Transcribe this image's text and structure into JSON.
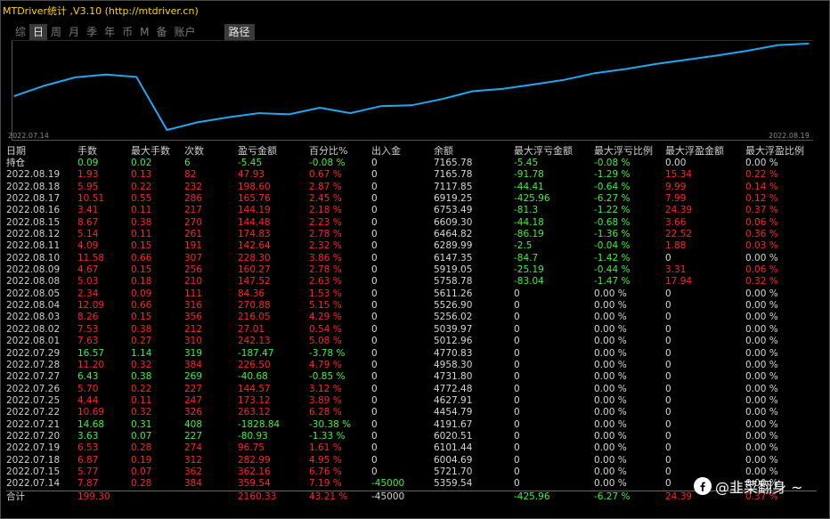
{
  "window": {
    "title": "MTDriver统计 ,V3.10 (http://mtdriver.cn)"
  },
  "tabs": [
    "综",
    "日",
    "周",
    "月",
    "季",
    "年",
    "币",
    "M",
    "备",
    "账户",
    "路径"
  ],
  "active_tab": "日",
  "chart_data": {
    "type": "line",
    "x_start_label": "2022.07.14",
    "x_end_label": "2022.08.19",
    "x": [
      "2022.07.14",
      "2022.07.15",
      "2022.07.18",
      "2022.07.19",
      "2022.07.20",
      "2022.07.21",
      "2022.07.22",
      "2022.07.25",
      "2022.07.26",
      "2022.07.27",
      "2022.07.28",
      "2022.07.29",
      "2022.08.01",
      "2022.08.02",
      "2022.08.03",
      "2022.08.04",
      "2022.08.05",
      "2022.08.08",
      "2022.08.09",
      "2022.08.10",
      "2022.08.11",
      "2022.08.12",
      "2022.08.15",
      "2022.08.16",
      "2022.08.17",
      "2022.08.18",
      "2022.08.19"
    ],
    "series": [
      {
        "values": [
          5359.54,
          5721.7,
          6004.69,
          6101.44,
          6020.51,
          4191.67,
          4454.79,
          4627.91,
          4772.48,
          4731.8,
          4958.3,
          4770.83,
          5012.96,
          5039.97,
          5256.02,
          5526.9,
          5611.26,
          5758.78,
          5919.05,
          6147.35,
          6289.99,
          6464.82,
          6609.3,
          6753.49,
          6919.25,
          7117.85,
          7165.78
        ]
      }
    ],
    "color": "#1ea8f0"
  },
  "table": {
    "headers": [
      "日期",
      "手数",
      "最大手数",
      "次数",
      "盈亏金额",
      "百分比%",
      "出入金",
      "余额",
      "最大浮亏金额",
      "最大浮亏比例",
      "最大浮盈金额",
      "最大浮盈比例"
    ],
    "hold": [
      "持仓",
      "0.09",
      "0.02",
      "6",
      "-5.45",
      "-0.08 %",
      "0",
      "7165.78",
      "-5.45",
      "-0.08 %",
      "0.00",
      "0.00 %"
    ],
    "rows": [
      [
        "2022.08.19",
        "1.93",
        "0.13",
        "82",
        "47.93",
        "0.67 %",
        "0",
        "7165.78",
        "-91.78",
        "-1.29 %",
        "15.34",
        "0.22 %"
      ],
      [
        "2022.08.18",
        "5.95",
        "0.22",
        "232",
        "198.60",
        "2.87 %",
        "0",
        "7117.85",
        "-44.41",
        "-0.64 %",
        "9.99",
        "0.14 %"
      ],
      [
        "2022.08.17",
        "10.51",
        "0.55",
        "286",
        "165.76",
        "2.45 %",
        "0",
        "6919.25",
        "-425.96",
        "-6.27 %",
        "7.99",
        "0.12 %"
      ],
      [
        "2022.08.16",
        "3.41",
        "0.11",
        "217",
        "144.19",
        "2.18 %",
        "0",
        "6753.49",
        "-81.3",
        "-1.22 %",
        "24.39",
        "0.37 %"
      ],
      [
        "2022.08.15",
        "8.67",
        "0.38",
        "270",
        "144.48",
        "2.23 %",
        "0",
        "6609.30",
        "-44.18",
        "-0.68 %",
        "3.66",
        "0.06 %"
      ],
      [
        "2022.08.12",
        "5.14",
        "0.11",
        "261",
        "174.83",
        "2.78 %",
        "0",
        "6464.82",
        "-86.19",
        "-1.36 %",
        "22.52",
        "0.36 %"
      ],
      [
        "2022.08.11",
        "4.09",
        "0.15",
        "191",
        "142.64",
        "2.32 %",
        "0",
        "6289.99",
        "-2.5",
        "-0.04 %",
        "1.88",
        "0.03 %"
      ],
      [
        "2022.08.10",
        "11.58",
        "0.66",
        "307",
        "228.30",
        "3.86 %",
        "0",
        "6147.35",
        "-84.7",
        "-1.42 %",
        "0",
        "0.00 %"
      ],
      [
        "2022.08.09",
        "4.67",
        "0.15",
        "256",
        "160.27",
        "2.78 %",
        "0",
        "5919.05",
        "-25.19",
        "-0.44 %",
        "3.31",
        "0.06 %"
      ],
      [
        "2022.08.08",
        "5.03",
        "0.18",
        "210",
        "147.52",
        "2.63 %",
        "0",
        "5758.78",
        "-83.04",
        "-1.47 %",
        "17.94",
        "0.32 %"
      ],
      [
        "2022.08.05",
        "2.34",
        "0.09",
        "111",
        "84.36",
        "1.53 %",
        "0",
        "5611.26",
        "0",
        "0.00 %",
        "0",
        "0.00 %"
      ],
      [
        "2022.08.04",
        "12.09",
        "0.66",
        "316",
        "270.88",
        "5.15 %",
        "0",
        "5526.90",
        "0",
        "0.00 %",
        "0",
        "0.00 %"
      ],
      [
        "2022.08.03",
        "8.26",
        "0.15",
        "356",
        "216.05",
        "4.29 %",
        "0",
        "5256.02",
        "0",
        "0.00 %",
        "0",
        "0.00 %"
      ],
      [
        "2022.08.02",
        "7.53",
        "0.38",
        "212",
        "27.01",
        "0.54 %",
        "0",
        "5039.97",
        "0",
        "0.00 %",
        "0",
        "0.00 %"
      ],
      [
        "2022.08.01",
        "7.63",
        "0.27",
        "310",
        "242.13",
        "5.08 %",
        "0",
        "5012.96",
        "0",
        "0.00 %",
        "0",
        "0.00 %"
      ],
      [
        "2022.07.29",
        "16.57",
        "1.14",
        "319",
        "-187.47",
        "-3.78 %",
        "0",
        "4770.83",
        "0",
        "0.00 %",
        "0",
        "0.00 %"
      ],
      [
        "2022.07.28",
        "11.20",
        "0.32",
        "384",
        "226.50",
        "4.79 %",
        "0",
        "4958.30",
        "0",
        "0.00 %",
        "0",
        "0.00 %"
      ],
      [
        "2022.07.27",
        "6.43",
        "0.38",
        "269",
        "-40.68",
        "-0.85 %",
        "0",
        "4731.80",
        "0",
        "0.00 %",
        "0",
        "0.00 %"
      ],
      [
        "2022.07.26",
        "5.70",
        "0.22",
        "227",
        "144.57",
        "3.12 %",
        "0",
        "4772.48",
        "0",
        "0.00 %",
        "0",
        "0.00 %"
      ],
      [
        "2022.07.25",
        "4.44",
        "0.11",
        "247",
        "173.12",
        "3.89 %",
        "0",
        "4627.91",
        "0",
        "0.00 %",
        "0",
        "0.00 %"
      ],
      [
        "2022.07.22",
        "10.69",
        "0.32",
        "326",
        "263.12",
        "6.28 %",
        "0",
        "4454.79",
        "0",
        "0.00 %",
        "0",
        "0.00 %"
      ],
      [
        "2022.07.21",
        "14.68",
        "0.31",
        "408",
        "-1828.84",
        "-30.38 %",
        "0",
        "4191.67",
        "0",
        "0.00 %",
        "0",
        "0.00 %"
      ],
      [
        "2022.07.20",
        "3.63",
        "0.07",
        "227",
        "-80.93",
        "-1.33 %",
        "0",
        "6020.51",
        "0",
        "0.00 %",
        "0",
        "0.00 %"
      ],
      [
        "2022.07.19",
        "6.53",
        "0.28",
        "274",
        "96.75",
        "1.61 %",
        "0",
        "6101.44",
        "0",
        "0.00 %",
        "0",
        "0.00 %"
      ],
      [
        "2022.07.18",
        "6.87",
        "0.19",
        "312",
        "282.99",
        "4.95 %",
        "0",
        "6004.69",
        "0",
        "0.00 %",
        "0",
        "0.00 %"
      ],
      [
        "2022.07.15",
        "5.77",
        "0.07",
        "362",
        "362.16",
        "6.76 %",
        "0",
        "5721.70",
        "0",
        "0.00 %",
        "0",
        "0.00 %"
      ],
      [
        "2022.07.14",
        "7.87",
        "0.28",
        "384",
        "359.54",
        "7.19 %",
        "-45000",
        "5359.54",
        "0",
        "0.00 %",
        "0",
        "0.00 %"
      ]
    ],
    "total": [
      "合计",
      "199.30",
      "",
      "",
      "2160.33",
      "43.21 %",
      "-45000",
      "",
      "-425.96",
      "-6.27 %",
      "24.39",
      "0.37 %"
    ]
  },
  "watermark": {
    "text": "@韭菜翻身 ~"
  },
  "colors": {
    "positive": "#ff2424",
    "negative": "#3cf23c",
    "neutral": "#d6d6d6",
    "title": "#ffd400",
    "line": "#1ea8f0"
  }
}
